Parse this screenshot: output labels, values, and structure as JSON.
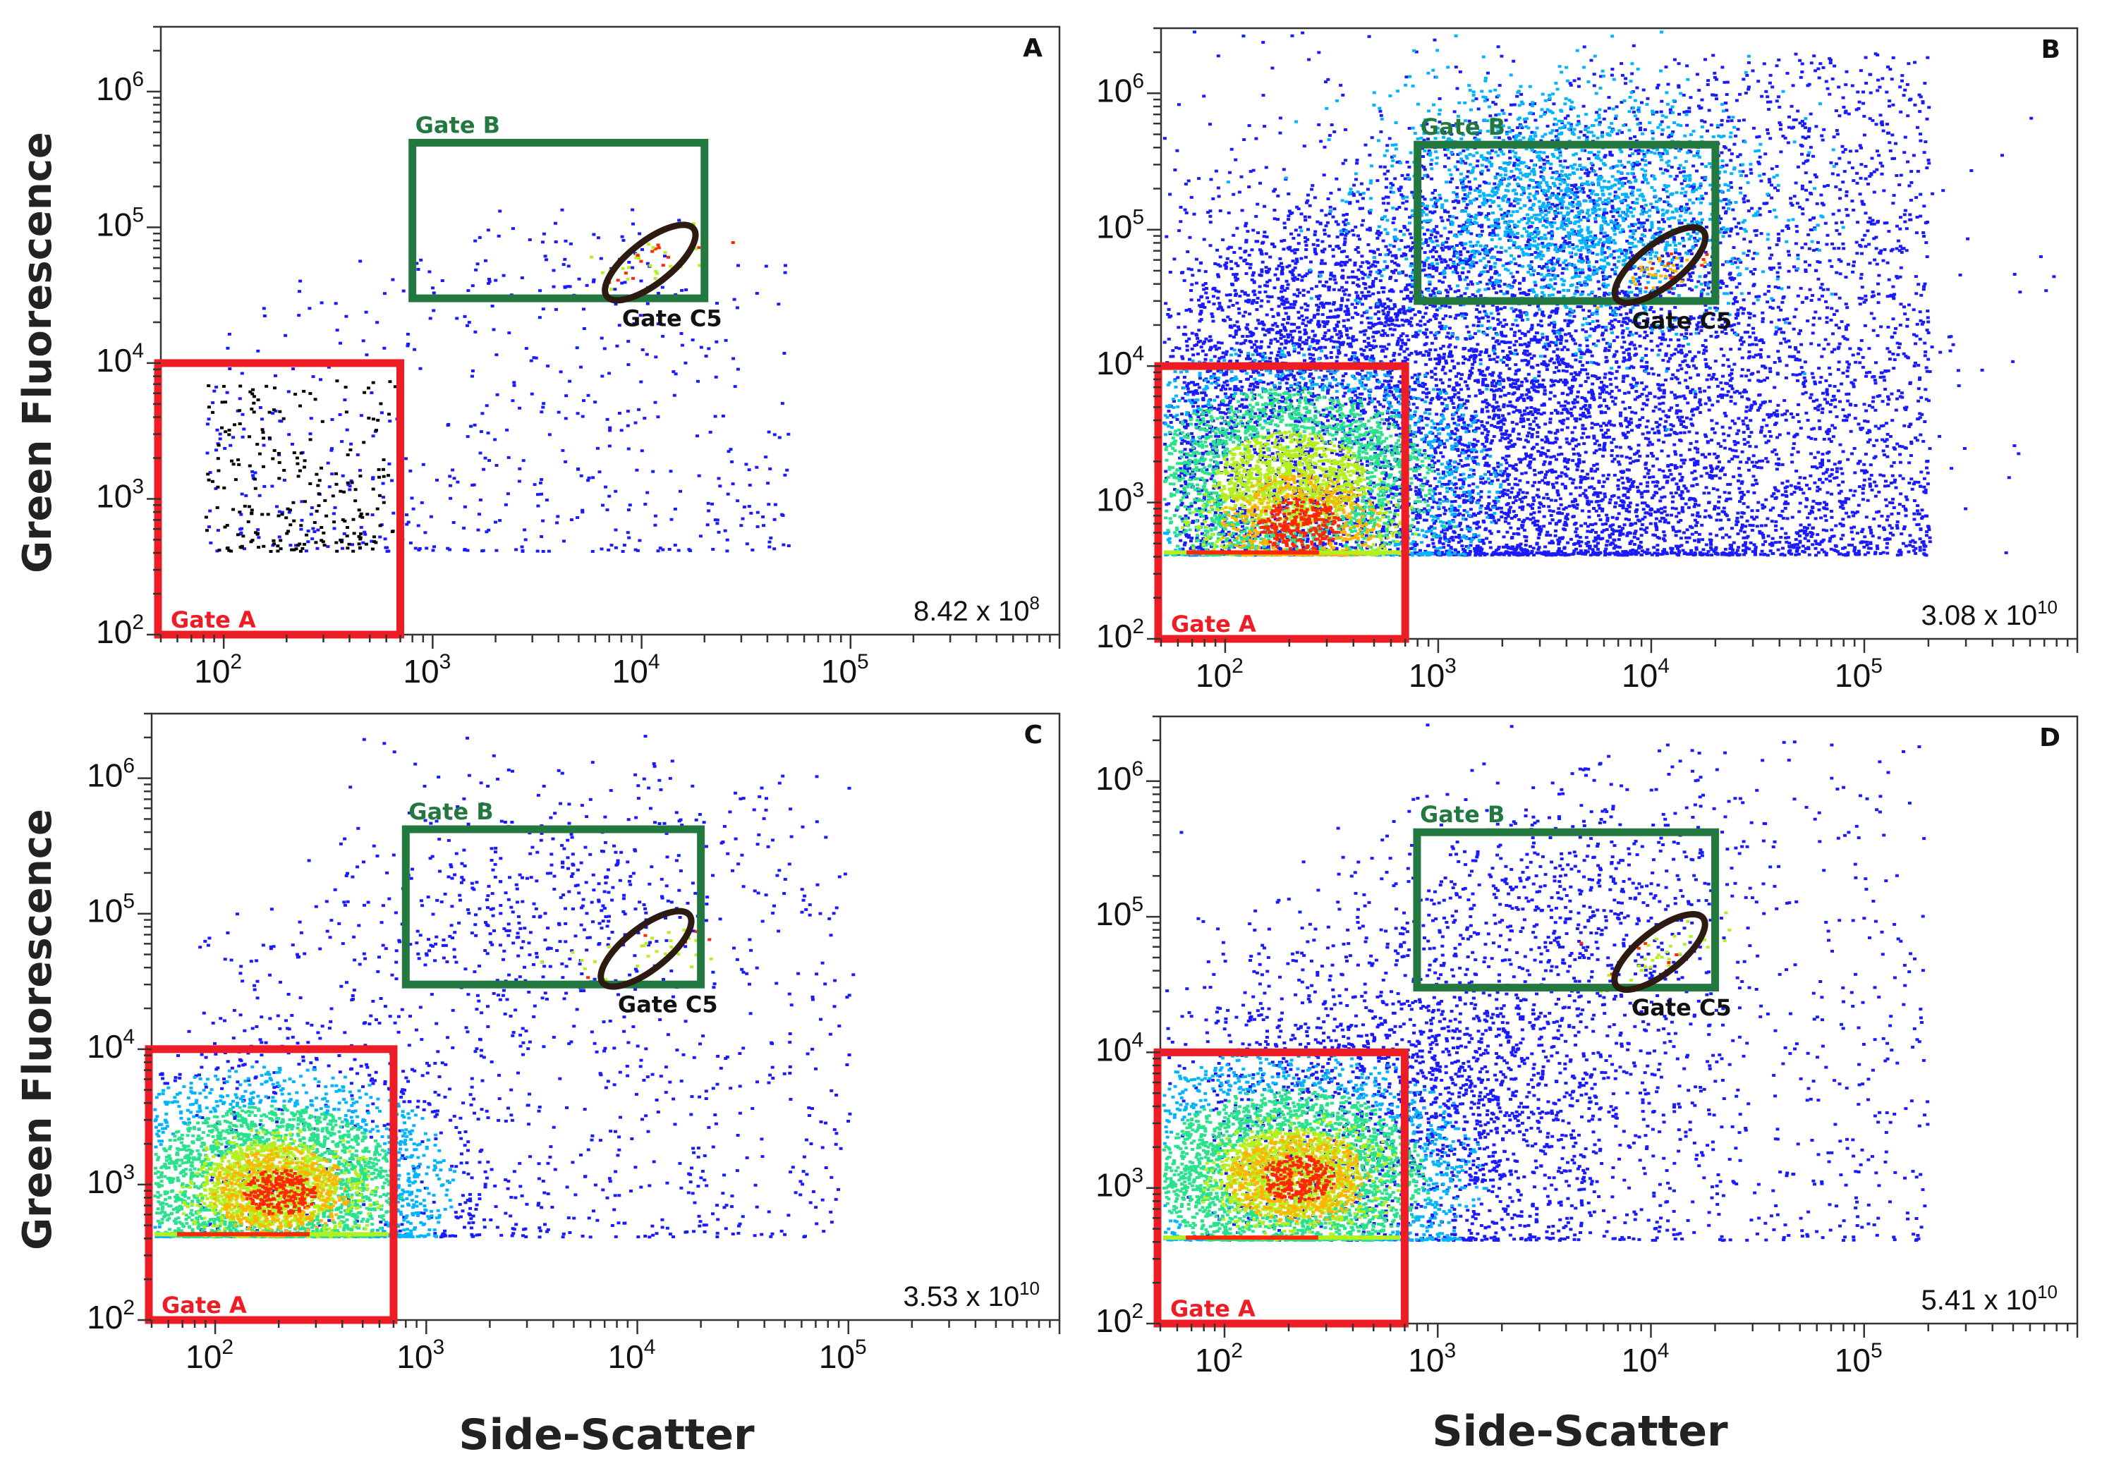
{
  "figure": {
    "ylabel": "Green Fluorescence",
    "xlabel": "Side-Scatter",
    "tick_base": "10"
  },
  "colors": {
    "gate_a": "#ee1c24",
    "gate_b": "#237840",
    "gate_c5": "#2d1b12",
    "axis": "#333333",
    "density": [
      "#1a1aff",
      "#00b4ff",
      "#28e28c",
      "#b4f01e",
      "#ffb400",
      "#ff2800"
    ]
  },
  "chart_data": [
    {
      "panel": "A",
      "type": "scatter",
      "xscale": "log",
      "yscale": "log",
      "xlim": [
        50,
        1000000
      ],
      "ylim": [
        100,
        3000000
      ],
      "xticks": [
        {
          "exp": "2",
          "v": 100
        },
        {
          "exp": "3",
          "v": 1000
        },
        {
          "exp": "4",
          "v": 10000
        },
        {
          "exp": "5",
          "v": 100000
        }
      ],
      "yticks": [
        {
          "exp": "2",
          "v": 100
        },
        {
          "exp": "3",
          "v": 1000
        },
        {
          "exp": "4",
          "v": 10000
        },
        {
          "exp": "5",
          "v": 100000
        },
        {
          "exp": "6",
          "v": 1000000
        }
      ],
      "count": {
        "mantissa": "8.42 x 10",
        "exp": "8"
      },
      "gates": {
        "A": {
          "label": "Gate A",
          "x": [
            50,
            700
          ],
          "y": [
            100,
            10000
          ]
        },
        "B": {
          "label": "Gate B",
          "x": [
            800,
            20000
          ],
          "y": [
            30000,
            420000
          ]
        },
        "C5": {
          "label": "Gate C5",
          "cx": 11000,
          "cy": 55000
        }
      },
      "populations": [
        {
          "name": "background",
          "n": 520,
          "cx": [
            80,
            50000
          ],
          "cy": [
            420,
            60000
          ],
          "spread": 1,
          "dens": 0
        },
        {
          "name": "gateA",
          "n": 220,
          "cx": [
            80,
            650
          ],
          "cy": [
            420,
            8000
          ],
          "spread": 1,
          "dens": 0
        },
        {
          "name": "gateB",
          "n": 60,
          "cx": [
            1500,
            15000
          ],
          "cy": [
            30000,
            150000
          ],
          "spread": 1,
          "dens": 0
        },
        {
          "name": "c5",
          "n": 40,
          "cx": 11000,
          "cy": 55000,
          "spread": 0.1,
          "dens": 3
        }
      ]
    },
    {
      "panel": "B",
      "type": "scatter",
      "xscale": "log",
      "yscale": "log",
      "xlim": [
        50,
        1000000
      ],
      "ylim": [
        100,
        3000000
      ],
      "xticks": [
        {
          "exp": "2",
          "v": 100
        },
        {
          "exp": "3",
          "v": 1000
        },
        {
          "exp": "4",
          "v": 10000
        },
        {
          "exp": "5",
          "v": 100000
        }
      ],
      "yticks": [
        {
          "exp": "2",
          "v": 100
        },
        {
          "exp": "3",
          "v": 1000
        },
        {
          "exp": "4",
          "v": 10000
        },
        {
          "exp": "5",
          "v": 100000
        },
        {
          "exp": "6",
          "v": 1000000
        }
      ],
      "count": {
        "mantissa": "3.08 x 10",
        "exp": "10"
      },
      "gates": {
        "A": {
          "label": "Gate A",
          "x": [
            50,
            700
          ],
          "y": [
            100,
            10000
          ]
        },
        "B": {
          "label": "Gate B",
          "x": [
            800,
            20000
          ],
          "y": [
            30000,
            420000
          ]
        },
        "C5": {
          "label": "Gate C5",
          "cx": 11000,
          "cy": 55000
        }
      },
      "populations": [
        {
          "name": "background",
          "n": 5200,
          "cx": [
            60,
            200000
          ],
          "cy": [
            420,
            2000000
          ],
          "spread": 1,
          "dens": 0
        },
        {
          "name": "cloud",
          "n": 4200,
          "cx": 1500,
          "cy": 8000,
          "spread": 0.9,
          "dens": 0
        },
        {
          "name": "gateA",
          "n": 3400,
          "cx": 200,
          "cy": 1500,
          "spread": 0.45,
          "dens": 2
        },
        {
          "name": "gateA_core",
          "n": 900,
          "cx": 220,
          "cy": 700,
          "spread": 0.25,
          "dens": 4
        },
        {
          "name": "gateB",
          "n": 1800,
          "cx": 4000,
          "cy": 150000,
          "spread": 0.45,
          "dens": 1
        },
        {
          "name": "c5",
          "n": 40,
          "cx": 11000,
          "cy": 50000,
          "spread": 0.1,
          "dens": 4
        }
      ]
    },
    {
      "panel": "C",
      "type": "scatter",
      "xscale": "log",
      "yscale": "log",
      "xlim": [
        50,
        1000000
      ],
      "ylim": [
        100,
        3000000
      ],
      "xticks": [
        {
          "exp": "2",
          "v": 100
        },
        {
          "exp": "3",
          "v": 1000
        },
        {
          "exp": "4",
          "v": 10000
        },
        {
          "exp": "5",
          "v": 100000
        }
      ],
      "yticks": [
        {
          "exp": "2",
          "v": 100
        },
        {
          "exp": "3",
          "v": 1000
        },
        {
          "exp": "4",
          "v": 10000
        },
        {
          "exp": "5",
          "v": 100000
        },
        {
          "exp": "6",
          "v": 1000000
        }
      ],
      "count": {
        "mantissa": "3.53 x 10",
        "exp": "10"
      },
      "gates": {
        "A": {
          "label": "Gate A",
          "x": [
            50,
            700
          ],
          "y": [
            100,
            10000
          ]
        },
        "B": {
          "label": "Gate B",
          "x": [
            800,
            20000
          ],
          "y": [
            30000,
            420000
          ]
        },
        "C5": {
          "label": "Gate C5",
          "cx": 11000,
          "cy": 55000
        }
      },
      "populations": [
        {
          "name": "background",
          "n": 900,
          "cx": [
            80,
            100000
          ],
          "cy": [
            420,
            1500000
          ],
          "spread": 1,
          "dens": 0
        },
        {
          "name": "gateA",
          "n": 3800,
          "cx": 180,
          "cy": 1000,
          "spread": 0.4,
          "dens": 2
        },
        {
          "name": "gateA_core",
          "n": 900,
          "cx": 200,
          "cy": 900,
          "spread": 0.22,
          "dens": 4
        },
        {
          "name": "gateB",
          "n": 350,
          "cx": 4000,
          "cy": 120000,
          "spread": 0.5,
          "dens": 0
        },
        {
          "name": "c5",
          "n": 40,
          "cx": 11000,
          "cy": 55000,
          "spread": 0.1,
          "dens": 3
        }
      ]
    },
    {
      "panel": "D",
      "type": "scatter",
      "xscale": "log",
      "yscale": "log",
      "xlim": [
        50,
        1000000
      ],
      "ylim": [
        100,
        3000000
      ],
      "xticks": [
        {
          "exp": "2",
          "v": 100
        },
        {
          "exp": "3",
          "v": 1000
        },
        {
          "exp": "4",
          "v": 10000
        },
        {
          "exp": "5",
          "v": 100000
        }
      ],
      "yticks": [
        {
          "exp": "2",
          "v": 100
        },
        {
          "exp": "3",
          "v": 1000
        },
        {
          "exp": "4",
          "v": 10000
        },
        {
          "exp": "5",
          "v": 100000
        },
        {
          "exp": "6",
          "v": 1000000
        }
      ],
      "count": {
        "mantissa": "5.41 x 10",
        "exp": "10"
      },
      "gates": {
        "A": {
          "label": "Gate A",
          "x": [
            50,
            700
          ],
          "y": [
            100,
            10000
          ]
        },
        "B": {
          "label": "Gate B",
          "x": [
            800,
            20000
          ],
          "y": [
            30000,
            420000
          ]
        },
        "C5": {
          "label": "Gate C5",
          "cx": 11000,
          "cy": 55000
        }
      },
      "populations": [
        {
          "name": "background",
          "n": 1000,
          "cx": [
            80,
            200000
          ],
          "cy": [
            420,
            2000000
          ],
          "spread": 1,
          "dens": 0
        },
        {
          "name": "cloud",
          "n": 1600,
          "cx": 1200,
          "cy": 5000,
          "spread": 0.6,
          "dens": 0
        },
        {
          "name": "gateA",
          "n": 3800,
          "cx": 200,
          "cy": 1300,
          "spread": 0.42,
          "dens": 2
        },
        {
          "name": "gateA_core",
          "n": 900,
          "cx": 220,
          "cy": 1200,
          "spread": 0.22,
          "dens": 4
        },
        {
          "name": "gateB",
          "n": 500,
          "cx": 4000,
          "cy": 130000,
          "spread": 0.45,
          "dens": 0
        },
        {
          "name": "c5",
          "n": 40,
          "cx": 11000,
          "cy": 55000,
          "spread": 0.1,
          "dens": 3
        }
      ]
    }
  ]
}
